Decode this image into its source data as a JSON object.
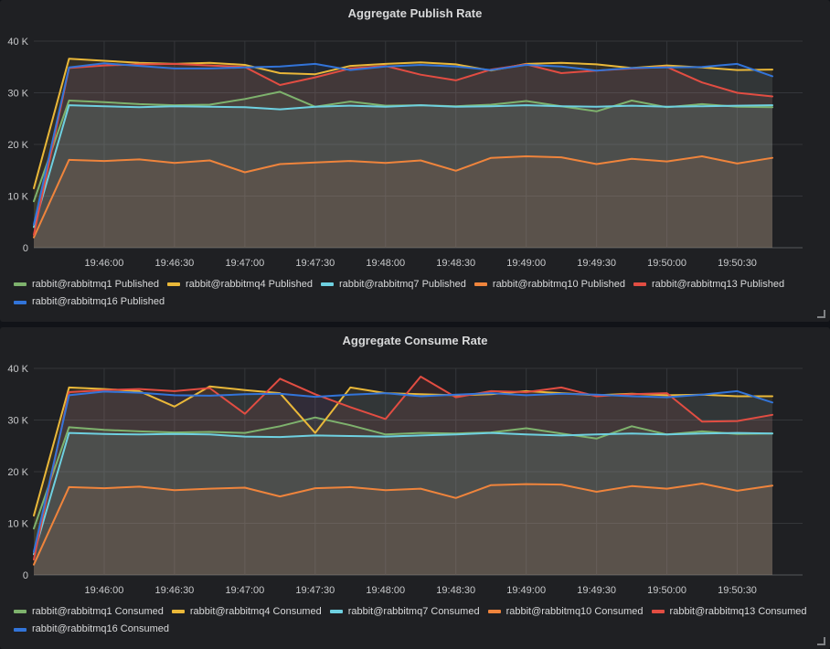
{
  "theme": {
    "page_bg": "#111318",
    "panel_bg": "#1f2023",
    "grid_color": "#34363a",
    "axis_line_color": "#55575b",
    "title_color": "#d8d9da",
    "tick_label_color": "#c9cacc",
    "legend_text_color": "#d8d9da",
    "series_colors": {
      "green": "#7EB26D",
      "yellow": "#EAB839",
      "cyan": "#6ED0E0",
      "orange": "#EF843C",
      "red": "#E24D42",
      "blue": "#3274D9"
    }
  },
  "chart_data": [
    {
      "type": "line",
      "title": "Aggregate Publish Rate",
      "xlabel": "",
      "ylabel": "",
      "ylim": [
        0,
        40000
      ],
      "grid": true,
      "legend_position": "bottom",
      "x_labels": [
        "19:45:30",
        "19:45:45",
        "19:46:00",
        "19:46:15",
        "19:46:30",
        "19:46:45",
        "19:47:00",
        "19:47:15",
        "19:47:30",
        "19:47:45",
        "19:48:00",
        "19:48:15",
        "19:48:30",
        "19:48:45",
        "19:49:00",
        "19:49:15",
        "19:49:30",
        "19:49:45",
        "19:50:00",
        "19:50:15",
        "19:50:30",
        "19:50:45"
      ],
      "x_seconds": [
        0,
        15,
        30,
        45,
        60,
        75,
        90,
        105,
        120,
        135,
        150,
        165,
        180,
        195,
        210,
        225,
        240,
        255,
        270,
        285,
        300,
        315
      ],
      "x_tick_labels": [
        "19:46:00",
        "19:46:30",
        "19:47:00",
        "19:47:30",
        "19:48:00",
        "19:48:30",
        "19:49:00",
        "19:49:30",
        "19:50:00",
        "19:50:30"
      ],
      "x_tick_seconds": [
        30,
        60,
        90,
        120,
        150,
        180,
        210,
        240,
        270,
        300
      ],
      "y_tick_values": [
        0,
        10000,
        20000,
        30000,
        40000
      ],
      "y_tick_labels": [
        "0",
        "10 K",
        "20 K",
        "30 K",
        "40 K"
      ],
      "series": [
        {
          "name": "rabbit@rabbitmq1 Published",
          "color": "#7EB26D",
          "values": [
            9000,
            28500,
            28200,
            27800,
            27600,
            27700,
            28800,
            30200,
            27300,
            28300,
            27500,
            27600,
            27400,
            27700,
            28400,
            27400,
            26400,
            28500,
            27200,
            27800,
            27300,
            27200
          ]
        },
        {
          "name": "rabbit@rabbitmq4 Published",
          "color": "#EAB839",
          "values": [
            11500,
            36600,
            36200,
            35800,
            35600,
            35800,
            35400,
            33800,
            33600,
            35200,
            35600,
            35900,
            35500,
            34300,
            35600,
            35800,
            35500,
            34800,
            35300,
            34900,
            34400,
            34500
          ]
        },
        {
          "name": "rabbit@rabbitmq7 Published",
          "color": "#6ED0E0",
          "values": [
            4000,
            27600,
            27400,
            27200,
            27400,
            27300,
            27200,
            26800,
            27300,
            27500,
            27300,
            27600,
            27300,
            27400,
            27600,
            27400,
            27300,
            27500,
            27300,
            27400,
            27500,
            27600
          ]
        },
        {
          "name": "rabbit@rabbitmq10 Published",
          "color": "#EF843C",
          "values": [
            2000,
            17000,
            16800,
            17100,
            16400,
            16900,
            14600,
            16200,
            16500,
            16800,
            16400,
            16900,
            14900,
            17400,
            17700,
            17500,
            16200,
            17200,
            16700,
            17700,
            16300,
            17400
          ]
        },
        {
          "name": "rabbit@rabbitmq13 Published",
          "color": "#E24D42",
          "values": [
            2500,
            34800,
            35300,
            35500,
            35600,
            35300,
            35000,
            31500,
            33000,
            34700,
            35200,
            33500,
            32400,
            34500,
            35500,
            33800,
            34300,
            34700,
            35000,
            32000,
            30000,
            29300
          ]
        },
        {
          "name": "rabbit@rabbitmq16 Published",
          "color": "#3274D9",
          "values": [
            4500,
            34900,
            35700,
            35200,
            34700,
            34700,
            34900,
            35100,
            35600,
            34400,
            35100,
            35400,
            35100,
            34400,
            35400,
            35100,
            34300,
            34800,
            34900,
            35000,
            35600,
            33200
          ]
        }
      ]
    },
    {
      "type": "line",
      "title": "Aggregate Consume Rate",
      "xlabel": "",
      "ylabel": "",
      "ylim": [
        0,
        40000
      ],
      "grid": true,
      "legend_position": "bottom",
      "x_labels": [
        "19:45:30",
        "19:45:45",
        "19:46:00",
        "19:46:15",
        "19:46:30",
        "19:46:45",
        "19:47:00",
        "19:47:15",
        "19:47:30",
        "19:47:45",
        "19:48:00",
        "19:48:15",
        "19:48:30",
        "19:48:45",
        "19:49:00",
        "19:49:15",
        "19:49:30",
        "19:49:45",
        "19:50:00",
        "19:50:15",
        "19:50:30",
        "19:50:45"
      ],
      "x_seconds": [
        0,
        15,
        30,
        45,
        60,
        75,
        90,
        105,
        120,
        135,
        150,
        165,
        180,
        195,
        210,
        225,
        240,
        255,
        270,
        285,
        300,
        315
      ],
      "x_tick_labels": [
        "19:46:00",
        "19:46:30",
        "19:47:00",
        "19:47:30",
        "19:48:00",
        "19:48:30",
        "19:49:00",
        "19:49:30",
        "19:50:00",
        "19:50:30"
      ],
      "x_tick_seconds": [
        30,
        60,
        90,
        120,
        150,
        180,
        210,
        240,
        270,
        300
      ],
      "y_tick_values": [
        0,
        10000,
        20000,
        30000,
        40000
      ],
      "y_tick_labels": [
        "0",
        "10 K",
        "20 K",
        "30 K",
        "40 K"
      ],
      "series": [
        {
          "name": "rabbit@rabbitmq1 Consumed",
          "color": "#7EB26D",
          "values": [
            9000,
            28600,
            28100,
            27800,
            27600,
            27700,
            27500,
            28800,
            30500,
            29000,
            27200,
            27500,
            27400,
            27600,
            28400,
            27400,
            26400,
            28800,
            27200,
            27800,
            27300,
            27400
          ]
        },
        {
          "name": "rabbit@rabbitmq4 Consumed",
          "color": "#EAB839",
          "values": [
            11500,
            36300,
            36000,
            35600,
            32600,
            36500,
            35800,
            35200,
            27500,
            36300,
            35200,
            35000,
            34800,
            35000,
            35600,
            35200,
            34800,
            35100,
            34800,
            34900,
            34600,
            34600
          ]
        },
        {
          "name": "rabbit@rabbitmq7 Consumed",
          "color": "#6ED0E0",
          "values": [
            4000,
            27500,
            27300,
            27200,
            27300,
            27200,
            26800,
            26700,
            27000,
            26900,
            26800,
            27000,
            27200,
            27500,
            27200,
            27000,
            27200,
            27400,
            27200,
            27400,
            27500,
            27400
          ]
        },
        {
          "name": "rabbit@rabbitmq10 Consumed",
          "color": "#EF843C",
          "values": [
            2000,
            17000,
            16800,
            17100,
            16400,
            16700,
            16900,
            15200,
            16800,
            17000,
            16400,
            16700,
            14900,
            17400,
            17600,
            17500,
            16100,
            17200,
            16700,
            17700,
            16300,
            17300
          ]
        },
        {
          "name": "rabbit@rabbitmq13 Consumed",
          "color": "#E24D42",
          "values": [
            3000,
            35400,
            35800,
            36000,
            35600,
            36200,
            31200,
            38000,
            35000,
            32500,
            30200,
            38400,
            34400,
            35600,
            35400,
            36300,
            34600,
            35000,
            35200,
            29700,
            29800,
            31000
          ]
        },
        {
          "name": "rabbit@rabbitmq16 Consumed",
          "color": "#3274D9",
          "values": [
            4500,
            34800,
            35500,
            35300,
            34800,
            34700,
            35000,
            35100,
            34500,
            34900,
            35200,
            34600,
            34900,
            35200,
            34800,
            35100,
            34900,
            34600,
            34400,
            34900,
            35600,
            33400
          ]
        }
      ]
    }
  ]
}
